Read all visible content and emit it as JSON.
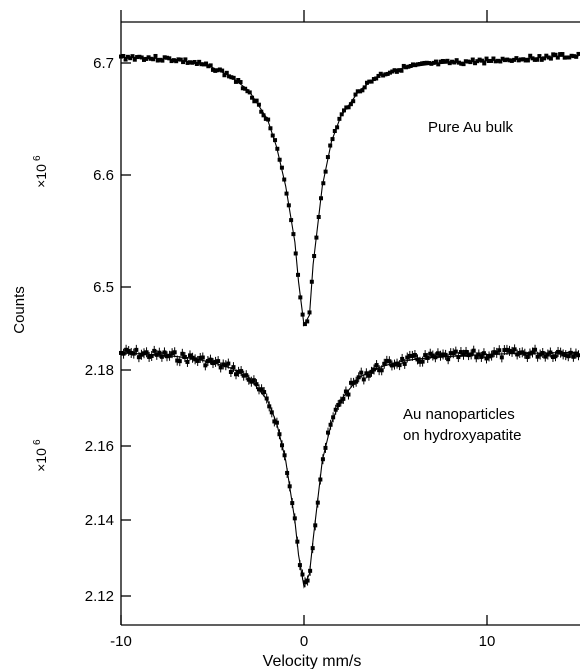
{
  "chart_data": [
    {
      "type": "scatter",
      "title": "",
      "xlabel": "Velocity  mm/s",
      "ylabel": "Counts",
      "y_multiplier": "×10^6",
      "x_ticks": [
        -10,
        0,
        10
      ],
      "y_ticks": [
        6.5,
        6.6,
        6.7
      ],
      "xlim": [
        -10,
        15
      ],
      "ylim": [
        6.45,
        6.74
      ],
      "annotation": "Pure Au bulk",
      "series": [
        {
          "marker": "filled-square",
          "fit_line": true,
          "x": [
            -10,
            -9,
            -8,
            -7,
            -6,
            -5,
            -4,
            -3,
            -2,
            -1.5,
            -1,
            -0.5,
            -0.3,
            0,
            0.3,
            0.5,
            1,
            1.5,
            2,
            3,
            4,
            5,
            6,
            7,
            8,
            9,
            10,
            11,
            12,
            13,
            14,
            15
          ],
          "y": [
            6.705,
            6.705,
            6.704,
            6.703,
            6.7,
            6.696,
            6.688,
            6.675,
            6.65,
            6.625,
            6.59,
            6.54,
            6.505,
            6.466,
            6.475,
            6.52,
            6.59,
            6.63,
            6.652,
            6.675,
            6.688,
            6.694,
            6.697,
            6.699,
            6.7,
            6.701,
            6.702,
            6.703,
            6.704,
            6.705,
            6.706,
            6.706
          ]
        }
      ]
    },
    {
      "type": "scatter",
      "title": "",
      "xlabel": "Velocity  mm/s",
      "ylabel": "Counts",
      "y_multiplier": "×10^6",
      "x_ticks": [
        -10,
        0,
        10
      ],
      "y_ticks": [
        2.12,
        2.14,
        2.16,
        2.18
      ],
      "xlim": [
        -10,
        15
      ],
      "ylim": [
        2.117,
        2.194
      ],
      "annotation": "Au nanoparticles\non hydroxyapatite",
      "series": [
        {
          "marker": "filled-square-errorbar",
          "fit_line": true,
          "x": [
            -10,
            -9,
            -8,
            -7,
            -6,
            -5,
            -4,
            -3,
            -2,
            -1.5,
            -1,
            -0.5,
            -0.3,
            0,
            0.3,
            0.5,
            1,
            1.5,
            2,
            3,
            4,
            5,
            6,
            7,
            8,
            9,
            10,
            11,
            12,
            13,
            14,
            15
          ],
          "y": [
            2.1845,
            2.1843,
            2.184,
            2.1836,
            2.183,
            2.182,
            2.1805,
            2.178,
            2.172,
            2.166,
            2.156,
            2.14,
            2.131,
            2.1225,
            2.126,
            2.135,
            2.156,
            2.166,
            2.172,
            2.178,
            2.1805,
            2.182,
            2.1828,
            2.1833,
            2.1836,
            2.1839,
            2.1841,
            2.1843,
            2.1844,
            2.1845,
            2.1846,
            2.1847
          ]
        }
      ]
    }
  ],
  "labels": {
    "top_annotation": "Pure Au bulk",
    "bottom_annotation_line1": "Au nanoparticles",
    "bottom_annotation_line2": "on hydroxyapatite",
    "multiplier_base": "×10",
    "multiplier_exp": "6",
    "ylabel": "Counts",
    "xlabel": "Velocity  mm/s",
    "x_tick_labels": [
      "-10",
      "0",
      "10"
    ],
    "top_y_tick_labels": [
      "6.7",
      "6.6",
      "6.5"
    ],
    "bottom_y_tick_labels": [
      "2.18",
      "2.16",
      "2.14",
      "2.12"
    ]
  }
}
